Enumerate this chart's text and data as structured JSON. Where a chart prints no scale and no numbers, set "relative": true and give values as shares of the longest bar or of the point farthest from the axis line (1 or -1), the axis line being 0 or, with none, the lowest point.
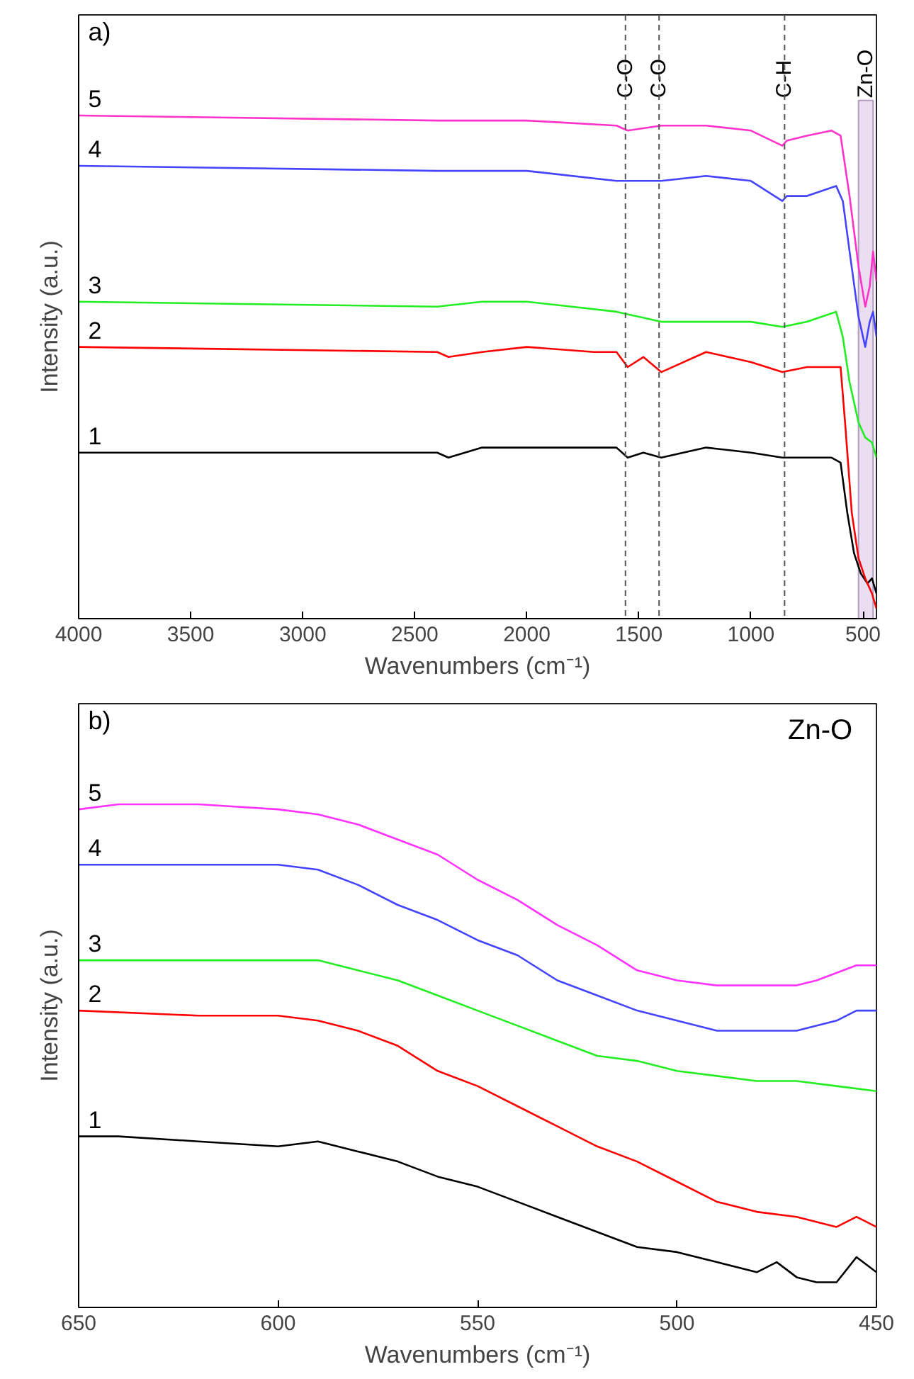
{
  "chart_data": [
    {
      "type": "line",
      "title": "a)",
      "xlabel": "Wavenumbers (cm⁻¹)",
      "ylabel": "Intensity (a.u.)",
      "relative": true,
      "xlim": [
        4000,
        440
      ],
      "xticks": [
        4000,
        3500,
        3000,
        2500,
        2000,
        1500,
        1000,
        500
      ],
      "grid": false,
      "series": [
        {
          "name": "1",
          "color": "#000000",
          "x": [
            4000,
            2400,
            2350,
            2200,
            2000,
            1600,
            1550,
            1480,
            1400,
            1200,
            1000,
            860,
            750,
            640,
            600,
            570,
            540,
            510,
            480,
            460,
            440
          ],
          "values": [
            0.33,
            0.33,
            0.32,
            0.34,
            0.34,
            0.34,
            0.32,
            0.33,
            0.32,
            0.34,
            0.33,
            0.32,
            0.32,
            0.32,
            0.31,
            0.21,
            0.13,
            0.09,
            0.07,
            0.08,
            0.05
          ]
        },
        {
          "name": "2",
          "color": "#ff0000",
          "x": [
            4000,
            2400,
            2350,
            2200,
            2000,
            1700,
            1600,
            1550,
            1480,
            1400,
            1200,
            1000,
            860,
            750,
            650,
            600,
            580,
            550,
            520,
            490,
            460,
            440
          ],
          "values": [
            0.54,
            0.53,
            0.52,
            0.53,
            0.54,
            0.53,
            0.53,
            0.5,
            0.52,
            0.49,
            0.53,
            0.51,
            0.49,
            0.5,
            0.5,
            0.5,
            0.39,
            0.21,
            0.12,
            0.08,
            0.05,
            0.02
          ]
        },
        {
          "name": "3",
          "color": "#22ee22",
          "x": [
            4000,
            2400,
            2200,
            2000,
            1800,
            1600,
            1400,
            1000,
            860,
            750,
            620,
            590,
            560,
            520,
            490,
            460,
            440
          ],
          "values": [
            0.63,
            0.62,
            0.63,
            0.63,
            0.62,
            0.61,
            0.59,
            0.59,
            0.58,
            0.59,
            0.61,
            0.56,
            0.47,
            0.39,
            0.36,
            0.35,
            0.32
          ]
        },
        {
          "name": "4",
          "color": "#4444ff",
          "x": [
            4000,
            2400,
            2200,
            2000,
            1600,
            1550,
            1400,
            1200,
            1000,
            860,
            840,
            750,
            620,
            590,
            560,
            520,
            490,
            470,
            455,
            440
          ],
          "values": [
            0.9,
            0.89,
            0.89,
            0.89,
            0.87,
            0.87,
            0.87,
            0.88,
            0.87,
            0.83,
            0.84,
            0.84,
            0.86,
            0.83,
            0.73,
            0.6,
            0.54,
            0.59,
            0.61,
            0.56
          ]
        },
        {
          "name": "5",
          "color": "#ff33cc",
          "x": [
            4000,
            2400,
            2200,
            2000,
            1600,
            1550,
            1400,
            1200,
            1000,
            860,
            840,
            750,
            640,
            600,
            560,
            520,
            490,
            470,
            455,
            440
          ],
          "values": [
            1.0,
            0.99,
            0.99,
            0.99,
            0.98,
            0.97,
            0.98,
            0.98,
            0.97,
            0.94,
            0.95,
            0.96,
            0.97,
            0.96,
            0.84,
            0.7,
            0.62,
            0.66,
            0.73,
            0.67
          ]
        }
      ],
      "ref_lines": [
        {
          "axis": "x",
          "value": 1560,
          "label": "C-O",
          "color": "#555555",
          "line_style": "dashed"
        },
        {
          "axis": "x",
          "value": 1410,
          "label": "C-O",
          "color": "#555555",
          "line_style": "dashed"
        },
        {
          "axis": "x",
          "value": 850,
          "label": "C-H",
          "color": "#555555",
          "line_style": "dashed"
        }
      ],
      "bands": [
        {
          "axis": "x",
          "from": 520,
          "to": 455,
          "label": "Zn-O",
          "color": "#e6d6ee"
        }
      ]
    },
    {
      "type": "line",
      "title": "b)",
      "xlabel": "Wavenumbers (cm⁻¹)",
      "ylabel": "Intensity (a.u.)",
      "relative": true,
      "xlim": [
        650,
        450
      ],
      "xticks": [
        650,
        600,
        550,
        500,
        450
      ],
      "grid": false,
      "annotations": [
        "Zn-O"
      ],
      "series": [
        {
          "name": "1",
          "color": "#000000",
          "x": [
            650,
            640,
            620,
            600,
            590,
            580,
            570,
            560,
            550,
            540,
            530,
            520,
            510,
            500,
            490,
            480,
            475,
            470,
            465,
            460,
            455,
            450
          ],
          "values": [
            0.34,
            0.34,
            0.33,
            0.32,
            0.33,
            0.31,
            0.29,
            0.26,
            0.24,
            0.21,
            0.18,
            0.15,
            0.12,
            0.11,
            0.09,
            0.07,
            0.09,
            0.06,
            0.05,
            0.05,
            0.1,
            0.07
          ]
        },
        {
          "name": "2",
          "color": "#ff0000",
          "x": [
            650,
            620,
            600,
            590,
            580,
            570,
            560,
            550,
            540,
            530,
            520,
            510,
            500,
            490,
            480,
            470,
            460,
            455,
            450
          ],
          "values": [
            0.59,
            0.58,
            0.58,
            0.57,
            0.55,
            0.52,
            0.47,
            0.44,
            0.4,
            0.36,
            0.32,
            0.29,
            0.25,
            0.21,
            0.19,
            0.18,
            0.16,
            0.18,
            0.16
          ]
        },
        {
          "name": "3",
          "color": "#22ee22",
          "x": [
            650,
            620,
            600,
            590,
            580,
            570,
            560,
            550,
            540,
            530,
            520,
            510,
            500,
            490,
            480,
            470,
            460,
            450
          ],
          "values": [
            0.69,
            0.69,
            0.69,
            0.69,
            0.67,
            0.65,
            0.62,
            0.59,
            0.56,
            0.53,
            0.5,
            0.49,
            0.47,
            0.46,
            0.45,
            0.45,
            0.44,
            0.43
          ]
        },
        {
          "name": "4",
          "color": "#4444ff",
          "x": [
            650,
            620,
            600,
            590,
            580,
            570,
            560,
            550,
            540,
            530,
            520,
            510,
            500,
            490,
            480,
            470,
            460,
            455,
            450
          ],
          "values": [
            0.88,
            0.88,
            0.88,
            0.87,
            0.84,
            0.8,
            0.77,
            0.73,
            0.7,
            0.65,
            0.62,
            0.59,
            0.57,
            0.55,
            0.55,
            0.55,
            0.57,
            0.59,
            0.59
          ]
        },
        {
          "name": "5",
          "color": "#ff33ff",
          "x": [
            650,
            640,
            620,
            600,
            590,
            580,
            570,
            560,
            550,
            540,
            530,
            520,
            510,
            500,
            490,
            480,
            470,
            465,
            455,
            450
          ],
          "values": [
            0.99,
            1.0,
            1.0,
            0.99,
            0.98,
            0.96,
            0.93,
            0.9,
            0.85,
            0.81,
            0.76,
            0.72,
            0.67,
            0.65,
            0.64,
            0.64,
            0.64,
            0.65,
            0.68,
            0.68
          ]
        }
      ]
    }
  ]
}
